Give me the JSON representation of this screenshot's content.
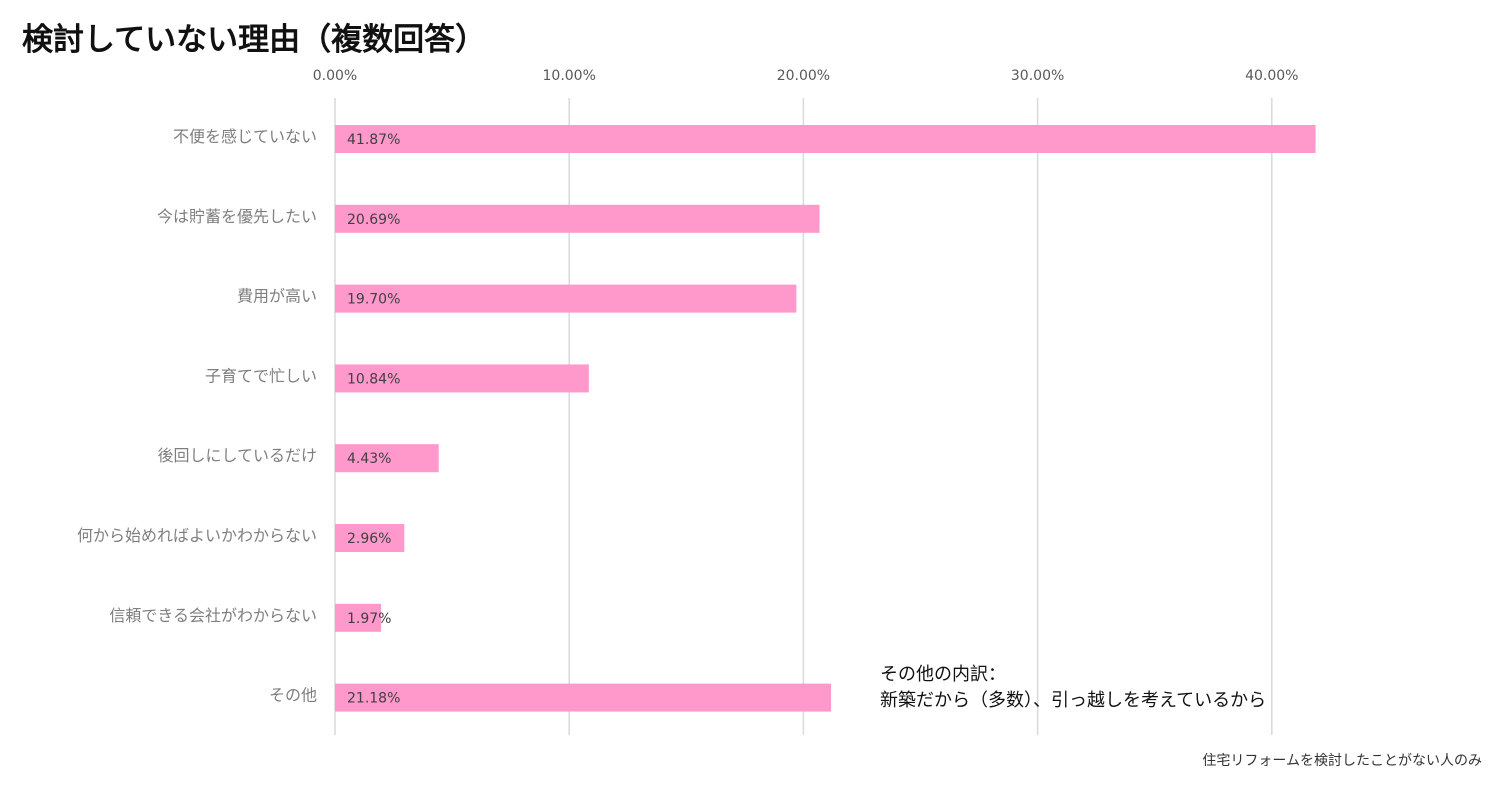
{
  "title": "検討していない理由（複数回答）",
  "chart_data": {
    "type": "bar",
    "orientation": "horizontal",
    "categories": [
      "不便を感じていない",
      "今は貯蓄を優先したい",
      "費用が高い",
      "子育てで忙しい",
      "後回しにしているだけ",
      "何から始めればよいかわからない",
      "信頼できる会社がわからない",
      "その他"
    ],
    "values": [
      41.87,
      20.69,
      19.7,
      10.84,
      4.43,
      2.96,
      1.97,
      21.18
    ],
    "value_labels": [
      "41.87%",
      "20.69%",
      "19.70%",
      "10.84%",
      "4.43%",
      "2.96%",
      "1.97%",
      "21.18%"
    ],
    "x_ticks": [
      0,
      10,
      20,
      30,
      40
    ],
    "x_tick_labels": [
      "0.00%",
      "10.00%",
      "20.00%",
      "30.00%",
      "40.00%"
    ],
    "xlim": [
      0,
      44
    ],
    "x_axis_position": "top",
    "grid": true,
    "legend": "none",
    "bar_color": "#ff99cc",
    "grid_color": "#d9d9d9"
  },
  "note": {
    "line1": "その他の内訳：",
    "line2": "新築だから（多数）、引っ越しを考えているから"
  },
  "footnote": "住宅リフォームを検討したことがない人のみ"
}
